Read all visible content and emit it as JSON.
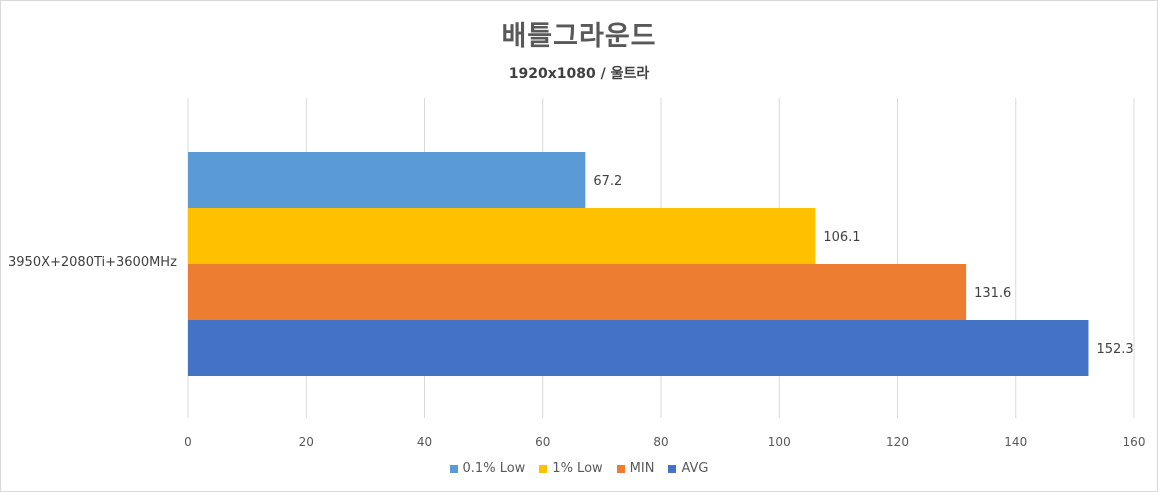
{
  "chart_data": {
    "type": "bar",
    "orientation": "horizontal",
    "title": "배틀그라운드",
    "subtitle": "1920x1080 / 울트라",
    "categories": [
      "3950X+2080Ti+3600MHz"
    ],
    "series": [
      {
        "name": "0.1% Low",
        "color": "#5b9bd5",
        "values": [
          67.2
        ]
      },
      {
        "name": "1% Low",
        "color": "#ffc000",
        "values": [
          106.1
        ]
      },
      {
        "name": "MIN",
        "color": "#ed7d31",
        "values": [
          131.6
        ]
      },
      {
        "name": "AVG",
        "color": "#4472c4",
        "values": [
          152.3
        ]
      }
    ],
    "xlim": [
      0,
      160
    ],
    "xticks": [
      "0",
      "20",
      "40",
      "60",
      "80",
      "100",
      "120",
      "140",
      "160"
    ],
    "grid": true,
    "legend_position": "bottom"
  },
  "legend": {
    "items": [
      {
        "label": "0.1% Low",
        "color": "#5b9bd5"
      },
      {
        "label": "1% Low",
        "color": "#ffc000"
      },
      {
        "label": "MIN",
        "color": "#ed7d31"
      },
      {
        "label": "AVG",
        "color": "#4472c4"
      }
    ]
  }
}
